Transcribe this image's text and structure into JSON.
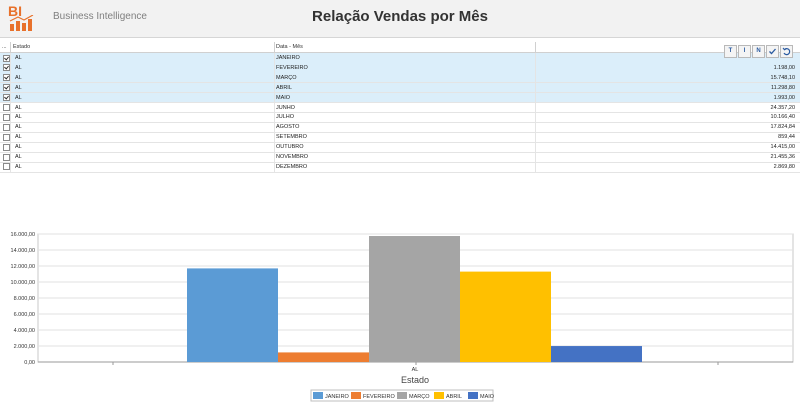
{
  "app": {
    "logo_text": "BI",
    "brand": "Business Intelligence",
    "title": "Relação Vendas  por Mês"
  },
  "grid": {
    "menu_label": "...",
    "columns": [
      "Estado",
      "Data - Mês"
    ],
    "rows": [
      {
        "estado": "AL",
        "mes": "JANEIRO",
        "valor": "",
        "checked": true
      },
      {
        "estado": "AL",
        "mes": "FEVEREIRO",
        "valor": "1.198,00",
        "checked": true
      },
      {
        "estado": "AL",
        "mes": "MARÇO",
        "valor": "15.748,10",
        "checked": true
      },
      {
        "estado": "AL",
        "mes": "ABRIL",
        "valor": "11.298,80",
        "checked": true
      },
      {
        "estado": "AL",
        "mes": "MAIO",
        "valor": "1.993,00",
        "checked": true
      },
      {
        "estado": "AL",
        "mes": "JUNHO",
        "valor": "24.357,20",
        "checked": false
      },
      {
        "estado": "AL",
        "mes": "JULHO",
        "valor": "10.166,40",
        "checked": false
      },
      {
        "estado": "AL",
        "mes": "AGOSTO",
        "valor": "17.824,84",
        "checked": false
      },
      {
        "estado": "AL",
        "mes": "SETEMBRO",
        "valor": "859,44",
        "checked": false
      },
      {
        "estado": "AL",
        "mes": "OUTUBRO",
        "valor": "14.415,00",
        "checked": false
      },
      {
        "estado": "AL",
        "mes": "NOVEMBRO",
        "valor": "21.455,36",
        "checked": false
      },
      {
        "estado": "AL",
        "mes": "DEZEMBRO",
        "valor": "2.869,80",
        "checked": false
      }
    ]
  },
  "toolbar": {
    "buttons": [
      "T",
      "I",
      "N"
    ],
    "check_icon": "check-icon",
    "undo_icon": "undo-icon"
  },
  "colors": {
    "selected_row": "#dbeefa",
    "accent": "#e8712b"
  },
  "chart_data": {
    "type": "bar",
    "categories": [
      "AL"
    ],
    "xlabel": "Estado",
    "ylabel": "",
    "ylim": [
      0,
      16000
    ],
    "yticks": [
      "0,00",
      "2.000,00",
      "4.000,00",
      "6.000,00",
      "8.000,00",
      "10.000,00",
      "12.000,00",
      "14.000,00",
      "16.000,00"
    ],
    "legend_position": "bottom",
    "grid": true,
    "series": [
      {
        "name": "JANEIRO",
        "values": [
          11700
        ],
        "color": "#5b9bd5"
      },
      {
        "name": "FEVEREIRO",
        "values": [
          1198
        ],
        "color": "#ed7d31"
      },
      {
        "name": "MARÇO",
        "values": [
          15748.1
        ],
        "color": "#a5a5a5"
      },
      {
        "name": "ABRIL",
        "values": [
          11298.8
        ],
        "color": "#ffc000"
      },
      {
        "name": "MAIO",
        "values": [
          1993
        ],
        "color": "#4472c4"
      }
    ]
  }
}
